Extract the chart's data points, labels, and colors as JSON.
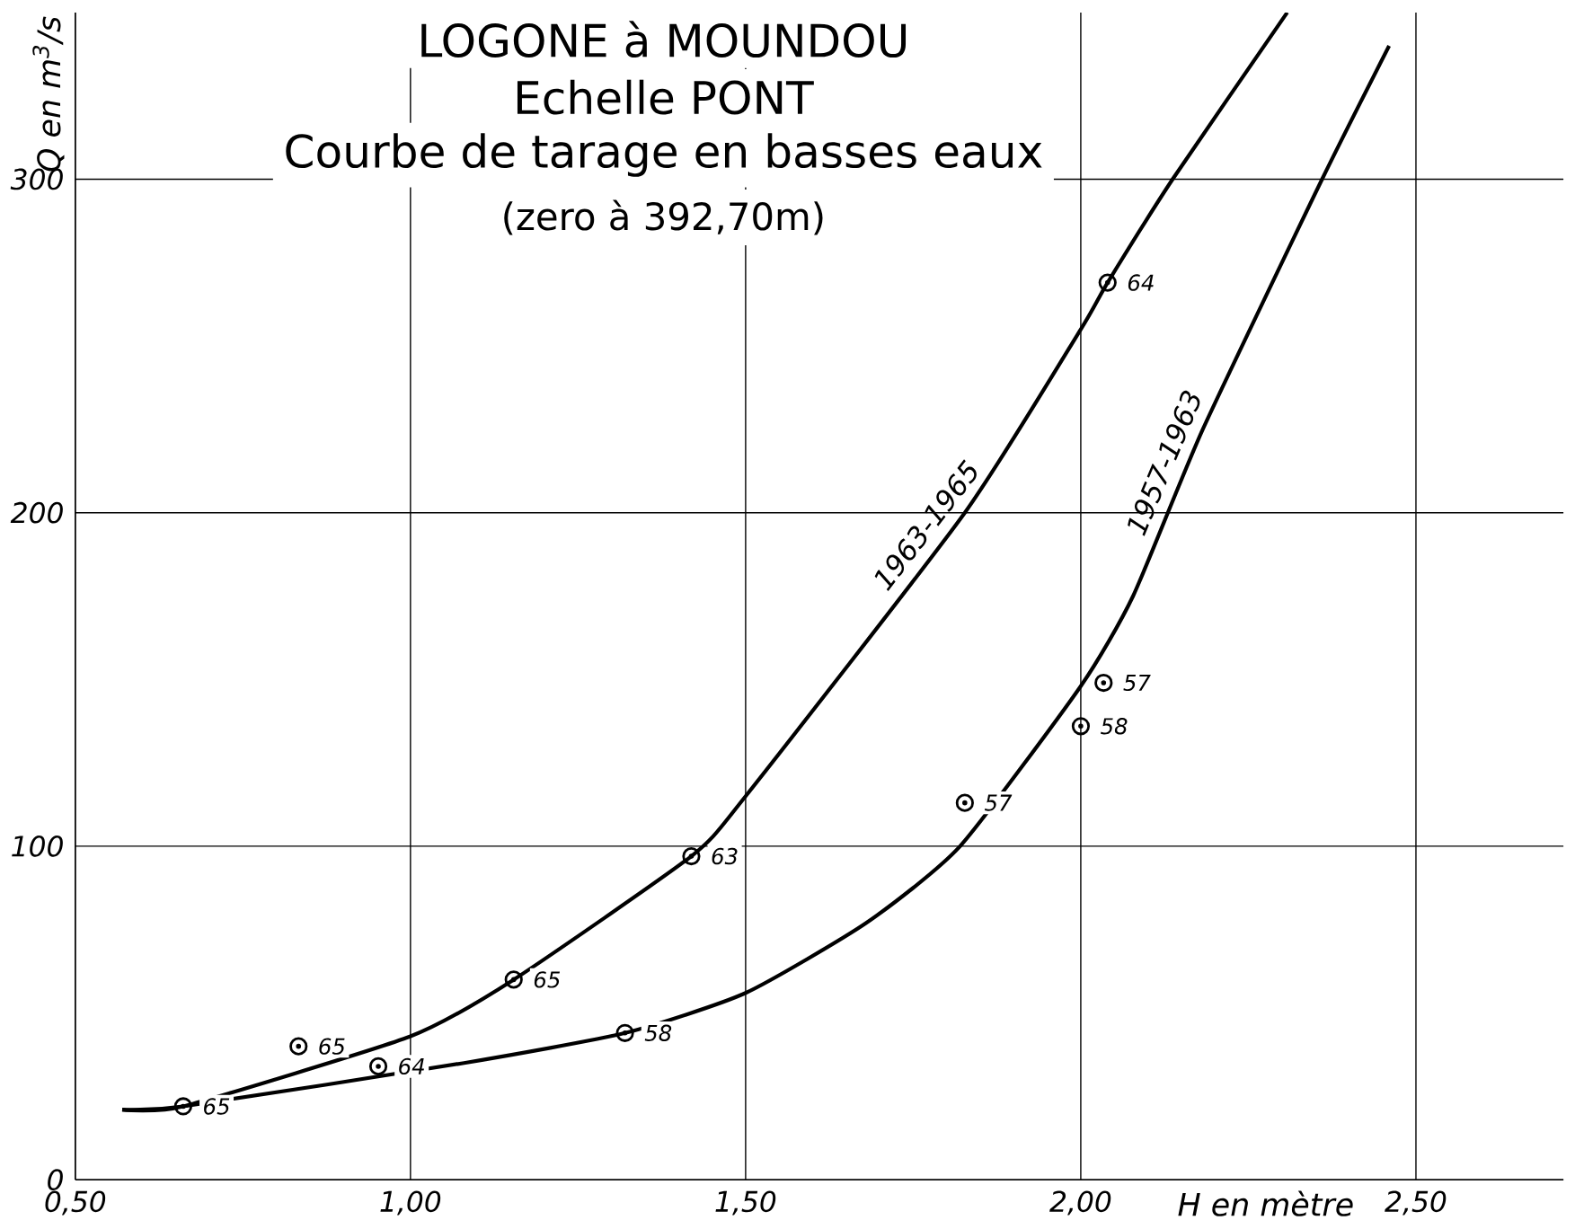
{
  "chart_data": {
    "type": "line",
    "title": "LOGONE à MOUNDOU",
    "subtitle": "Echelle PONT",
    "annotations": [
      "Courbe de tarage en basses eaux",
      "(zero à 392,70m)",
      {
        "text": "65",
        "x": 0.661,
        "y": 22
      },
      {
        "text": "65",
        "x": 0.833,
        "y": 40
      },
      {
        "text": "64",
        "x": 0.952,
        "y": 34
      },
      {
        "text": "65",
        "x": 1.154,
        "y": 60
      },
      {
        "text": "58",
        "x": 1.32,
        "y": 44
      },
      {
        "text": "63",
        "x": 1.419,
        "y": 97
      },
      {
        "text": "57",
        "x": 1.827,
        "y": 113
      },
      {
        "text": "58",
        "x": 2.0,
        "y": 136
      },
      {
        "text": "57",
        "x": 2.034,
        "y": 149
      },
      {
        "text": "64",
        "x": 2.04,
        "y": 269
      }
    ],
    "xlabel": "H en mètre",
    "ylabel": "Q en m$^{3}$/s",
    "xlim": [
      0.5,
      2.72
    ],
    "ylim": [
      0,
      350
    ],
    "xticks": [
      {
        "value": 0.5,
        "label": "0,50"
      },
      {
        "value": 1.0,
        "label": "1,00"
      },
      {
        "value": 1.5,
        "label": "1,50"
      },
      {
        "value": 2.0,
        "label": "2,00"
      },
      {
        "value": 2.5,
        "label": "2,50"
      }
    ],
    "yticks": [
      0,
      100,
      200,
      300
    ],
    "grid": true,
    "series": [
      {
        "name": "1963-1965",
        "type": "line",
        "color": "#000000",
        "x": [
          0.57,
          0.661,
          1.0,
          1.154,
          1.419,
          1.5,
          1.827,
          2.0,
          2.04,
          2.137,
          2.308
        ],
        "values": [
          21,
          22,
          43,
          60,
          97,
          115,
          200,
          255,
          269,
          300,
          350
        ]
      },
      {
        "name": "1957-1963",
        "type": "line",
        "color": "#000000",
        "x": [
          0.57,
          0.661,
          1.08,
          1.32,
          1.5,
          1.68,
          1.82,
          2.0,
          2.078,
          2.182,
          2.36,
          2.46
        ],
        "values": [
          21,
          22,
          35,
          44,
          56,
          77,
          100,
          148,
          175,
          225,
          300,
          340
        ]
      },
      {
        "type": "scatter",
        "color": "#000000",
        "marker": "circle",
        "x": [
          0.661,
          0.833,
          0.952,
          1.154,
          1.32,
          1.419,
          1.827,
          2.0,
          2.034,
          2.04
        ],
        "values": [
          22,
          40,
          34,
          60,
          44,
          97,
          113,
          136,
          149,
          269
        ]
      }
    ]
  }
}
